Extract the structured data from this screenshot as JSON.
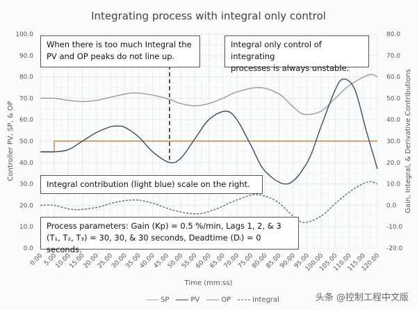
{
  "chart_data": {
    "type": "line",
    "title": "Integrating process with integral only control",
    "xlabel": "Time (mm:ss)",
    "ylabel": "Controller PV, SP, & OP",
    "y2label": "Gain, Integral, & Derivative Contributions",
    "ylim": [
      0,
      100
    ],
    "y2lim": [
      -20,
      80
    ],
    "grid": true,
    "legend_position": "bottom",
    "x_ticks": [
      "0.00",
      "5.00",
      "10.00",
      "15.00",
      "20.00",
      "25.00",
      "30.00",
      "35.00",
      "40.00",
      "45.00",
      "50.00",
      "55.00",
      "60.00",
      "65.00",
      "70.00",
      "75.00",
      "80.00",
      "85.00",
      "90.00",
      "95.00",
      "100.00",
      "105.00",
      "110.00",
      "115.00",
      "120.00"
    ],
    "y_ticks": [
      "100.0",
      "90.0",
      "80.0",
      "70.0",
      "60.0",
      "50.0",
      "40.0",
      "30.0",
      "20.0",
      "10.0",
      "0.0"
    ],
    "y2_ticks": [
      "80.0",
      "70.0",
      "60.0",
      "50.0",
      "40.0",
      "30.0",
      "20.0",
      "10.0",
      "0.0",
      "-10.0",
      "-20.0"
    ],
    "series": [
      {
        "name": "SP",
        "axis": "left",
        "color": "#c8a678",
        "style": "solid",
        "x": [
          0,
          4.9,
          5,
          120
        ],
        "values": [
          45,
          45,
          50,
          50
        ]
      },
      {
        "name": "PV",
        "axis": "left",
        "color": "#3e4a63",
        "style": "solid",
        "x": [
          0,
          5,
          10,
          15,
          20,
          25,
          27.5,
          30,
          35,
          40,
          46,
          50,
          55,
          60,
          66,
          70,
          75,
          80,
          88,
          95,
          100,
          105,
          108,
          112,
          116,
          120
        ],
        "values": [
          45,
          45,
          46,
          50,
          54,
          56.7,
          57,
          56.5,
          52,
          45,
          40,
          42,
          51,
          60,
          64,
          60,
          48,
          36,
          30,
          40,
          57,
          74,
          79,
          74,
          55,
          37
        ]
      },
      {
        "name": "OP",
        "axis": "left",
        "color": "#9a9a9a",
        "style": "solid",
        "x": [
          0,
          5,
          10,
          15,
          20,
          25,
          33,
          40,
          46,
          50,
          55,
          60,
          65,
          70,
          78,
          85,
          90,
          94,
          100,
          105,
          110,
          117,
          120
        ],
        "values": [
          70,
          70,
          69,
          68.5,
          69,
          70.5,
          72.5,
          71.5,
          69.5,
          67.5,
          66.5,
          67.5,
          70,
          73,
          75,
          72,
          66,
          62.5,
          64,
          70,
          76,
          81,
          80
        ]
      },
      {
        "name": "Integral",
        "axis": "right",
        "color": "#5a6a80",
        "style": "dashed",
        "x": [
          0,
          5,
          12,
          20,
          27,
          34,
          40,
          48,
          56,
          62,
          70,
          77,
          84,
          90,
          94,
          100,
          106,
          112,
          117,
          120
        ],
        "values": [
          0,
          0,
          -2,
          -1,
          1.5,
          2.5,
          1,
          -2.5,
          -4,
          -2,
          2.5,
          5,
          2,
          -5,
          -8,
          -5,
          2,
          8,
          11,
          10
        ]
      }
    ],
    "annotations": [
      "When there is too much Integral the PV and OP peaks do not line up.",
      "Integral only control of integrating processes is always unstable.",
      "Integral contribution (light blue) scale on the right.",
      "Process parameters:  Gain (Kp) = 0.5 %/min, Lags 1, 2, & 3 (T₁, T₂, T₃) = 30, 30, & 30 seconds, Deadtime (Dᵢ) = 0 seconds."
    ],
    "vertical_marker": {
      "x": 46,
      "style": "dashed",
      "color": "#111"
    }
  },
  "annotation_boxes": {
    "box1_line1": "When there is too much Integral the",
    "box1_line2": "PV and OP peaks do not line up.",
    "box2_line1": "Integral only control of integrating",
    "box2_line2": "processes is always unstable.",
    "box3": "Integral contribution (light blue) scale on the right.",
    "box4_line1": "Process parameters:  Gain (Kp) = 0.5 %/min, Lags 1, 2, & 3",
    "box4_line2": "(T₁, T₂, T₃) = 30, 30, & 30 seconds, Deadtime (Dᵢ) = 0 seconds."
  },
  "legend": {
    "sp": "SP",
    "pv": "PV",
    "op": "OP",
    "integral": "Integral"
  },
  "watermark": "头条 @控制工程中文版"
}
